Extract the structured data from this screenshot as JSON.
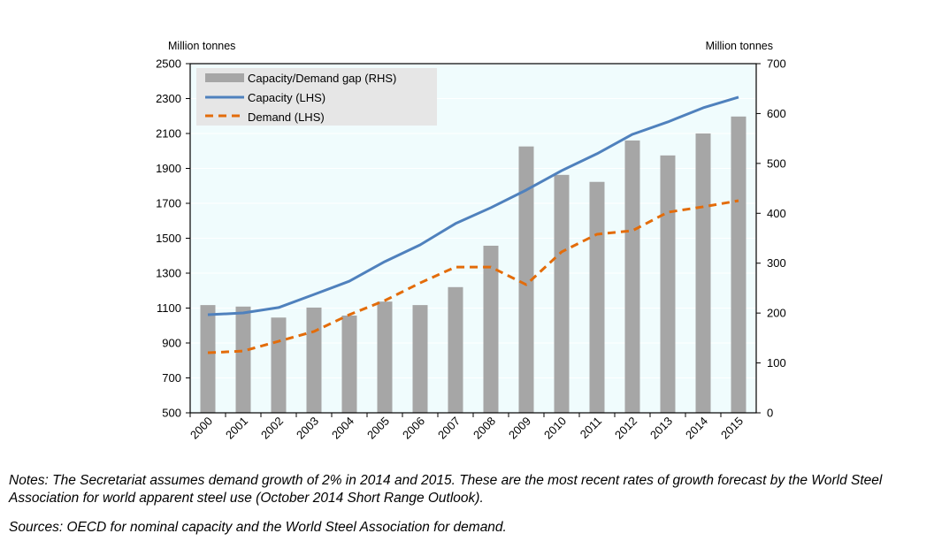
{
  "chart_data": {
    "type": "bar+line",
    "left_axis_label": "Million tonnes",
    "right_axis_label": "Million tonnes",
    "ylim_left": [
      500,
      2500
    ],
    "yticks_left": [
      500,
      700,
      900,
      1100,
      1300,
      1500,
      1700,
      1900,
      2100,
      2300,
      2500
    ],
    "ylim_right": [
      0,
      700
    ],
    "yticks_right": [
      0,
      100,
      200,
      300,
      400,
      500,
      600,
      700
    ],
    "categories": [
      "2000",
      "2001",
      "2002",
      "2003",
      "2004",
      "2005",
      "2006",
      "2007",
      "2008",
      "2009",
      "2010",
      "2011",
      "2012",
      "2013",
      "2014",
      "2015"
    ],
    "legend_position": "top-left",
    "series": [
      {
        "name": "Capacity/Demand gap (RHS)",
        "type": "bar",
        "axis": "right",
        "color": "#a6a6a6",
        "values": [
          216,
          213,
          191,
          211,
          195,
          223,
          216,
          252,
          335,
          534,
          477,
          463,
          546,
          516,
          560,
          594
        ]
      },
      {
        "name": "Capacity (LHS)",
        "type": "line",
        "axis": "left",
        "color": "#4f81bd",
        "values": [
          1062,
          1072,
          1103,
          1178,
          1254,
          1366,
          1462,
          1584,
          1675,
          1776,
          1887,
          1984,
          2095,
          2166,
          2247,
          2308
        ]
      },
      {
        "name": "Demand (LHS)",
        "type": "line",
        "dashed": true,
        "axis": "left",
        "color": "#e36c0a",
        "values": [
          844,
          854,
          910,
          966,
          1062,
          1143,
          1244,
          1335,
          1335,
          1234,
          1422,
          1523,
          1543,
          1649,
          1680,
          1715
        ]
      }
    ]
  },
  "notes": "Notes: The Secretariat assumes demand growth of 2% in 2014 and 2015. These are the most recent rates of growth forecast by the World Steel Association for world apparent steel use (October 2014 Short Range Outlook).",
  "sources": "Sources: OECD for nominal capacity and the World Steel Association for demand."
}
